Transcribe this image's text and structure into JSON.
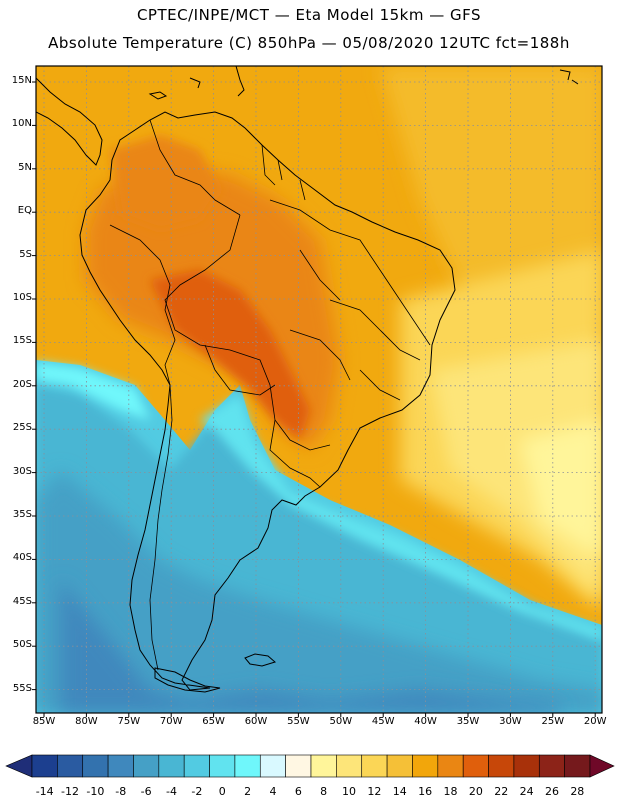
{
  "header": {
    "line1": "CPTEC/INPE/MCT —   Eta Model 15km — GFS",
    "line2": "Absolute Temperature (C) 850hPa — 05/08/2020 12UTC fct=188h"
  },
  "lat_labels": [
    "15N",
    "10N",
    "5N",
    "EQ",
    "5S",
    "10S",
    "15S",
    "20S",
    "25S",
    "30S",
    "35S",
    "40S",
    "45S",
    "50S",
    "55S"
  ],
  "lon_labels": [
    "85W",
    "80W",
    "75W",
    "70W",
    "65W",
    "60W",
    "55W",
    "50W",
    "45W",
    "40W",
    "35W",
    "30W",
    "25W",
    "20W"
  ],
  "colorbar": {
    "labels": [
      "-14",
      "-12",
      "-10",
      "-8",
      "-6",
      "-4",
      "-2",
      "0",
      "2",
      "4",
      "6",
      "8",
      "10",
      "12",
      "14",
      "16",
      "18",
      "20",
      "22",
      "24",
      "26",
      "28"
    ],
    "colors": [
      "#1c3f8f",
      "#2a5ba1",
      "#3372ae",
      "#3f88bd",
      "#45a0c6",
      "#49b6d3",
      "#52cbe2",
      "#61e3ef",
      "#6ff7fb",
      "#d9f9ff",
      "#fff7e3",
      "#fff59a",
      "#fde579",
      "#fbd656",
      "#f5c037",
      "#f2a60b",
      "#ea8613",
      "#e05f0c",
      "#c74709",
      "#a8310a",
      "#8c2318",
      "#75191c"
    ],
    "under_color": "#1f2e78",
    "over_color": "#6f0828"
  }
}
